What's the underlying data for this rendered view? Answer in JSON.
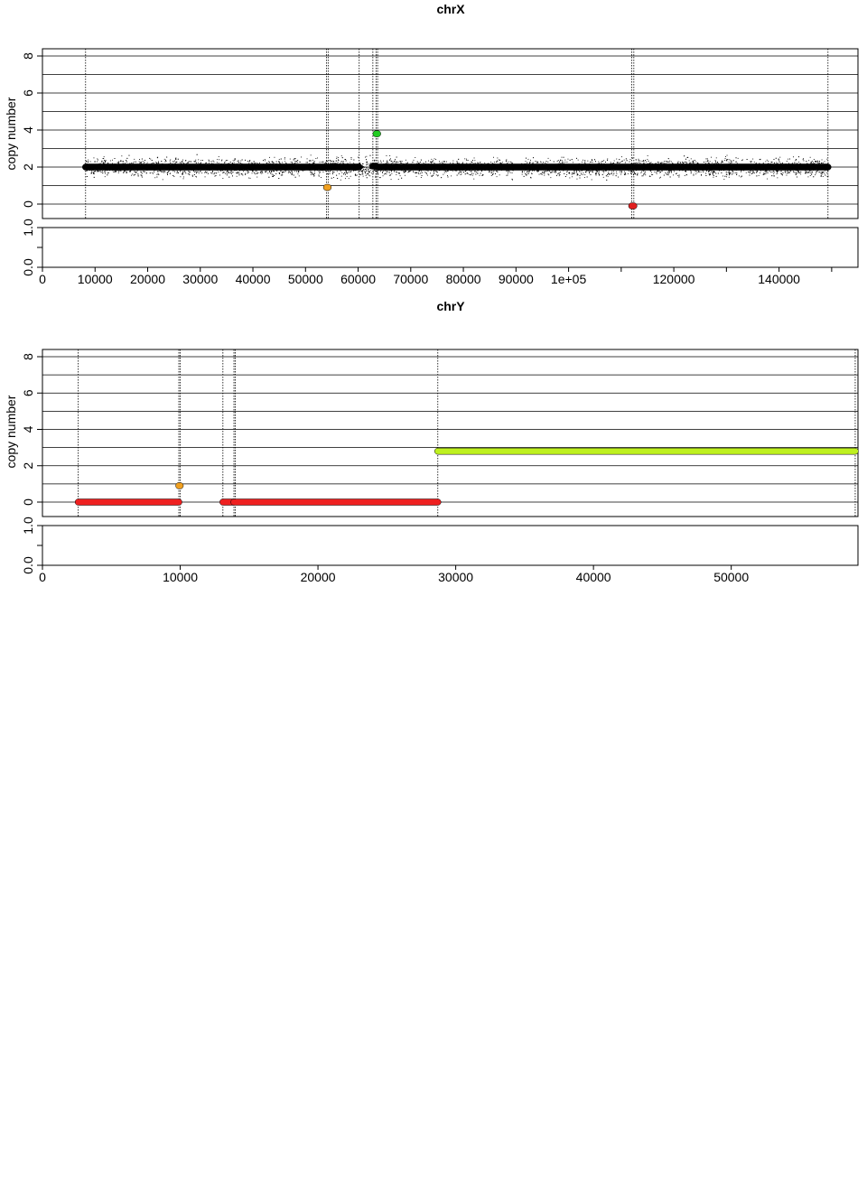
{
  "chart_data": [
    {
      "type": "scatter",
      "title": "chrX",
      "ylabel": "copy number",
      "xlim": [
        0,
        155000
      ],
      "ylim": [
        0,
        8
      ],
      "x_ticks": [
        0,
        10000,
        20000,
        30000,
        40000,
        50000,
        60000,
        70000,
        80000,
        90000,
        100000,
        120000,
        140000
      ],
      "x_tick_labels": [
        "0",
        "10000",
        "20000",
        "30000",
        "40000",
        "50000",
        "60000",
        "70000",
        "80000",
        "90000",
        "1e+05",
        "120000",
        "140000"
      ],
      "x_minor_ticks": [
        110000,
        130000,
        150000
      ],
      "y_ticks": [
        0,
        2,
        4,
        6,
        8
      ],
      "y_tick_labels": [
        "0",
        "2",
        "4",
        "6",
        "8"
      ],
      "grid": [
        0,
        1,
        2,
        3,
        4,
        5,
        6,
        7,
        8
      ],
      "sub_panel_y_ticks": [
        "0.0",
        "1.0"
      ],
      "breakpoints": [
        8200,
        54000,
        54300,
        60200,
        62800,
        63400,
        63700,
        112000,
        112400,
        149300
      ],
      "points_band": {
        "x": [
          8200,
          149300
        ],
        "center": 2.0,
        "spread": 0.6,
        "gaps": [
          [
            87500,
            88000
          ],
          [
            89500,
            91000
          ]
        ]
      },
      "segments": [
        {
          "x": [
            8200,
            60200
          ],
          "y": 2.0,
          "color": "#000000"
        },
        {
          "x": [
            54000,
            54300
          ],
          "y": 0.9,
          "color": "#f0a020"
        },
        {
          "x": [
            62800,
            63400
          ],
          "y": 2.05,
          "color": "#000000"
        },
        {
          "x": [
            63400,
            63700
          ],
          "y": 3.8,
          "color": "#22cc22"
        },
        {
          "x": [
            63700,
            149300
          ],
          "y": 2.0,
          "color": "#000000"
        },
        {
          "x": [
            112000,
            112400
          ],
          "y": -0.1,
          "color": "#e02020"
        }
      ]
    },
    {
      "type": "scatter",
      "title": "chrY",
      "ylabel": "copy number",
      "xlim": [
        0,
        59200
      ],
      "ylim": [
        0,
        8
      ],
      "x_ticks": [
        0,
        10000,
        20000,
        30000,
        40000,
        50000
      ],
      "x_tick_labels": [
        "0",
        "10000",
        "20000",
        "30000",
        "40000",
        "50000"
      ],
      "x_minor_ticks": [],
      "y_ticks": [
        0,
        2,
        4,
        6,
        8
      ],
      "y_tick_labels": [
        "0",
        "2",
        "4",
        "6",
        "8"
      ],
      "grid": [
        0,
        1,
        2,
        3,
        4,
        5,
        6,
        7,
        8
      ],
      "sub_panel_y_ticks": [
        "0.0",
        "1.0"
      ],
      "breakpoints": [
        2600,
        9900,
        10000,
        13100,
        13900,
        14000,
        28700,
        59000
      ],
      "points_band": null,
      "segments": [
        {
          "x": [
            2600,
            9900
          ],
          "y": 0.0,
          "color": "#ee2020"
        },
        {
          "x": [
            9900,
            10000
          ],
          "y": 0.9,
          "color": "#f0a020"
        },
        {
          "x": [
            13100,
            13900
          ],
          "y": 0.0,
          "color": "#ee2020"
        },
        {
          "x": [
            13900,
            28700
          ],
          "y": 0.0,
          "color": "#ee2020"
        },
        {
          "x": [
            28700,
            59000
          ],
          "y": 2.8,
          "color": "#bef020"
        }
      ]
    }
  ]
}
